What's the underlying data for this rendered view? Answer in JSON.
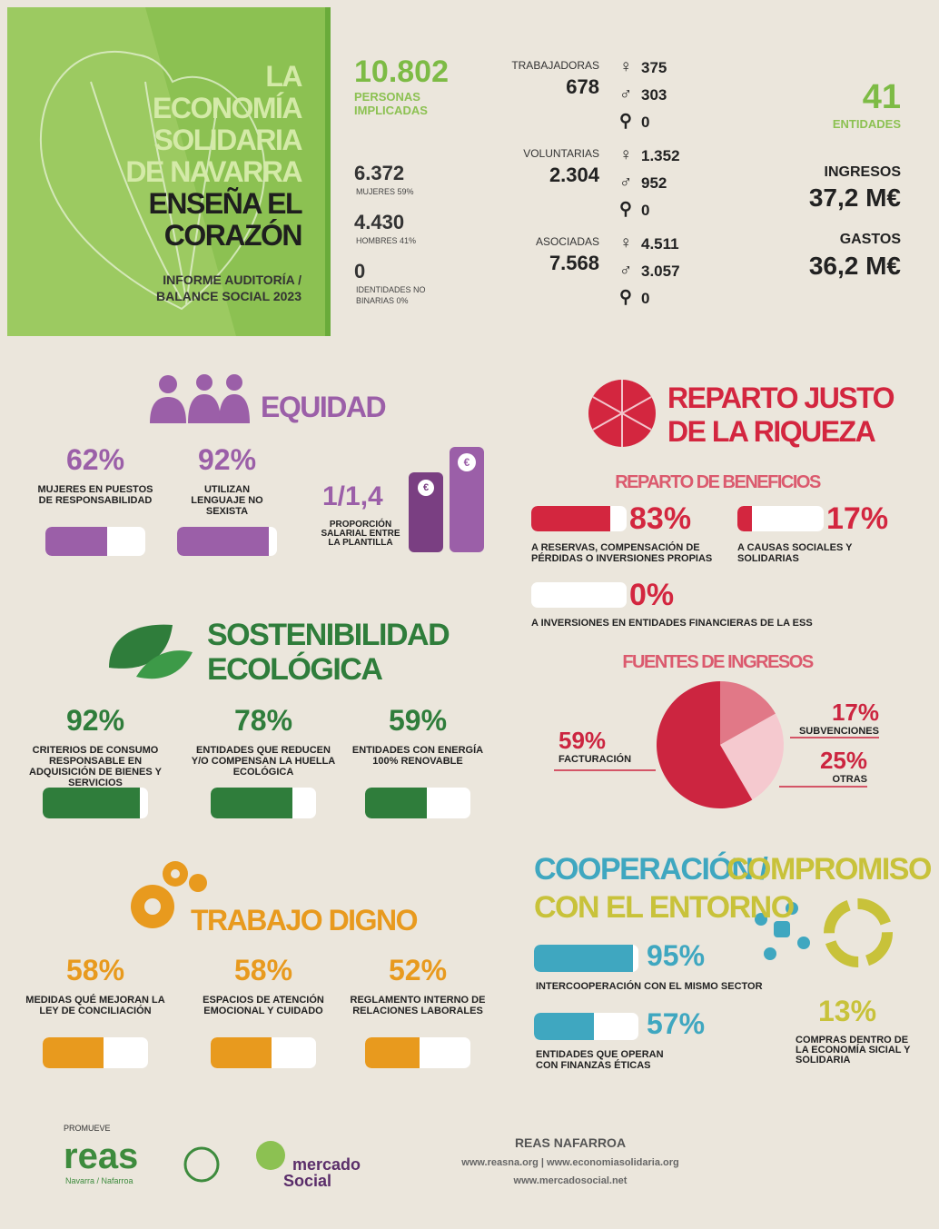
{
  "header": {
    "title_lines": [
      "LA",
      "ECONOMÍA",
      "SOLIDARIA",
      "DE NAVARRA"
    ],
    "title_emph": [
      "ENSEÑA EL",
      "CORAZÓN"
    ],
    "subtitle": [
      "INFORME AUDITORÍA /",
      "BALANCE SOCIAL 2023"
    ]
  },
  "people": {
    "total": "10.802",
    "total_label": [
      "PERSONAS",
      "IMPLICADAS"
    ],
    "breakdown": [
      {
        "value": "6.372",
        "label": "MUJERES 59%"
      },
      {
        "value": "4.430",
        "label": "HOMBRES 41%"
      },
      {
        "value": "0",
        "label": "IDENTIDADES NO BINARIAS 0%"
      }
    ]
  },
  "gender_symbols": [
    "♀",
    "♂",
    "⚲"
  ],
  "groups": [
    {
      "label": "TRABAJADORAS",
      "total": "678",
      "counts": [
        "375",
        "303",
        "0"
      ]
    },
    {
      "label": "VOLUNTARIAS",
      "total": "2.304",
      "counts": [
        "1.352",
        "952",
        "0"
      ]
    },
    {
      "label": "ASOCIADAS",
      "total": "7.568",
      "counts": [
        "4.511",
        "3.057",
        "0"
      ]
    }
  ],
  "entities": {
    "value": "41",
    "label": "ENTIDADES"
  },
  "finance": [
    {
      "label": "INGRESOS",
      "value": "37,2 M€"
    },
    {
      "label": "GASTOS",
      "value": "36,2 M€"
    }
  ],
  "equidad": {
    "title": "EQUIDAD",
    "items": [
      {
        "value": 62,
        "label": "62%",
        "text": "MUJERES EN PUESTOS DE RESPONSABILIDAD"
      },
      {
        "value": 92,
        "label": "92%",
        "text": "UTILIZAN LENGUAJE NO SEXISTA"
      }
    ],
    "ratio": {
      "value": "1/1,4",
      "text": "PROPORCIÓN SALARIAL ENTRE LA PLANTILLA"
    },
    "currency": "€"
  },
  "reparto": {
    "title": [
      "REPARTO JUSTO",
      "DE LA RIQUEZA"
    ],
    "beneficios_title": "REPARTO DE BENEFICIOS",
    "beneficios": [
      {
        "value": 83,
        "label": "83%",
        "text": "A RESERVAS, COMPENSACIÓN DE PÉRDIDAS O INVERSIONES PROPIAS"
      },
      {
        "value": 17,
        "label": "17%",
        "text": "A CAUSAS SOCIALES Y SOLIDARIAS"
      },
      {
        "value": 0,
        "label": "0%",
        "text": "A INVERSIONES EN ENTIDADES FINANCIERAS DE LA ESS"
      }
    ],
    "fuentes_title": "FUENTES DE INGRESOS",
    "fuentes": [
      {
        "value": 17,
        "label": "17%",
        "text": "SUBVENCIONES",
        "color": "#e17887"
      },
      {
        "value": 25,
        "label": "25%",
        "text": "OTRAS",
        "color": "#f5c9cf"
      },
      {
        "value": 59,
        "label": "59%",
        "text": "FACTURACIÓN",
        "color": "#cc2540"
      }
    ]
  },
  "sostenibilidad": {
    "title": [
      "SOSTENIBILIDAD",
      "ECOLÓGICA"
    ],
    "items": [
      {
        "value": 92,
        "label": "92%",
        "text": "CRITERIOS DE CONSUMO RESPONSABLE EN ADQUISICIÓN DE BIENES Y SERVICIOS"
      },
      {
        "value": 78,
        "label": "78%",
        "text": "ENTIDADES QUE REDUCEN Y/O COMPENSAN LA HUELLA ECOLÓGICA"
      },
      {
        "value": 59,
        "label": "59%",
        "text": "ENTIDADES CON ENERGÍA 100% RENOVABLE"
      }
    ]
  },
  "trabajo": {
    "title": "TRABAJO DIGNO",
    "items": [
      {
        "value": 58,
        "label": "58%",
        "text": "MEDIDAS QUÉ MEJORAN LA LEY DE CONCILIACIÓN"
      },
      {
        "value": 58,
        "label": "58%",
        "text": "ESPACIOS DE ATENCIÓN EMOCIONAL Y CUIDADO"
      },
      {
        "value": 52,
        "label": "52%",
        "text": "REGLAMENTO INTERNO DE RELACIONES LABORALES"
      }
    ]
  },
  "cooperacion": {
    "title": [
      "COOPERACIÓN /",
      "COMPROMISO",
      "CON EL ENTORNO"
    ],
    "items": [
      {
        "value": 95,
        "label": "95%",
        "text": "INTERCOOPERACIÓN CON EL MISMO SECTOR"
      },
      {
        "value": 57,
        "label": "57%",
        "text": "ENTIDADES QUE OPERAN CON FINANZAS ÉTICAS"
      }
    ],
    "compras": {
      "label": "13%",
      "text": "COMPRAS DENTRO DE LA ECONOMÍA SICIAL Y SOLIDARIA"
    }
  },
  "footer": {
    "promueve": "PROMUEVE",
    "reas": "reas",
    "reas_sub": "Navarra / Nafarroa",
    "mercado": [
      "mercado",
      "Social"
    ],
    "org": "REAS NAFARROA",
    "links": [
      "www.reasna.org | www.economiasolidaria.org",
      "www.mercadosocial.net"
    ]
  }
}
